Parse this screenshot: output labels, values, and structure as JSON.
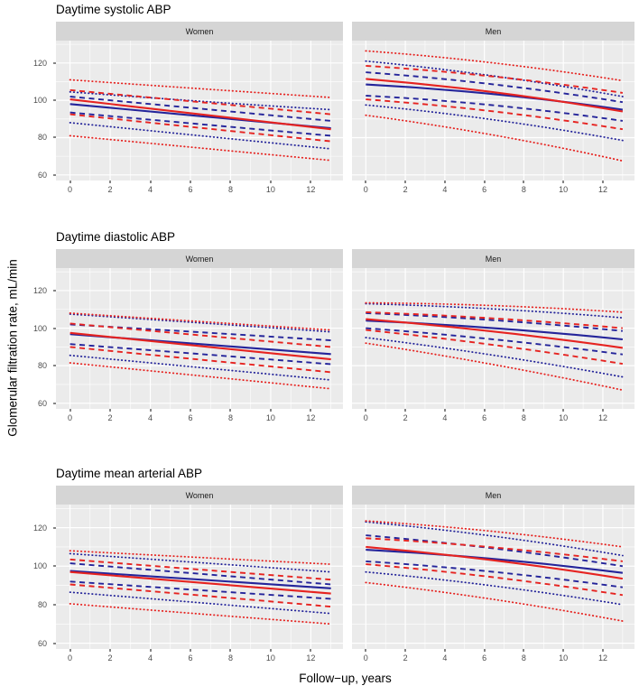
{
  "figure": {
    "x_axis_title": "Follow−up, years",
    "y_axis_title": "Glomerular filtration rate, mL/min"
  },
  "palette": {
    "red": "#e62320",
    "blue": "#24249a",
    "panel_bg": "#ebebeb",
    "strip_bg": "#d5d5d5",
    "grid": "#ffffff",
    "tick_mark": "#333333",
    "tick_text": "#4d4d4d"
  },
  "axes": {
    "x_ticks": [
      0,
      2,
      4,
      6,
      8,
      10,
      12
    ],
    "y_ticks": [
      60,
      80,
      100,
      120
    ],
    "x_minor_ticks": [
      1,
      3,
      5,
      7,
      9,
      11,
      13
    ],
    "y_minor_ticks": [
      70,
      90,
      110,
      130
    ],
    "x_domain": [
      -0.7,
      13.6
    ],
    "y_domain": [
      57,
      132
    ],
    "grid": "on",
    "legend": "none"
  },
  "chart_data": [
    {
      "type": "line",
      "title": "Daytime systolic ABP",
      "x": [
        0,
        6.5,
        13
      ],
      "panels": [
        {
          "facet": "Women",
          "series": [
            {
              "name": "blue-dotted-upper",
              "color": "blue",
              "style": "dotted",
              "y": [
                104.5,
                99.5,
                95
              ]
            },
            {
              "name": "red-dotted-upper",
              "color": "red",
              "style": "dotted",
              "y": [
                111,
                106.2,
                101.5
              ]
            },
            {
              "name": "blue-dotted-lower",
              "color": "blue",
              "style": "dotted",
              "y": [
                88,
                81,
                74
              ]
            },
            {
              "name": "red-dotted-lower",
              "color": "red",
              "style": "dotted",
              "y": [
                81,
                74.4,
                67.8
              ]
            },
            {
              "name": "blue-dashed-upper",
              "color": "blue",
              "style": "dashed",
              "y": [
                102,
                95.5,
                89
              ]
            },
            {
              "name": "red-dashed-upper",
              "color": "red",
              "style": "dashed",
              "y": [
                105.5,
                99,
                92.5
              ]
            },
            {
              "name": "blue-dashed-lower",
              "color": "blue",
              "style": "dashed",
              "y": [
                93.5,
                87.2,
                81
              ]
            },
            {
              "name": "red-dashed-lower",
              "color": "red",
              "style": "dashed",
              "y": [
                92.5,
                85.2,
                78
              ]
            },
            {
              "name": "blue-solid-mean",
              "color": "blue",
              "style": "solid",
              "y": [
                98,
                91.5,
                85
              ]
            },
            {
              "name": "red-solid-mean",
              "color": "red",
              "style": "solid",
              "y": [
                100.5,
                92.5,
                84.5
              ]
            }
          ]
        },
        {
          "facet": "Men",
          "series": [
            {
              "name": "blue-dotted-upper",
              "color": "blue",
              "style": "dotted",
              "y": [
                121,
                113,
                102
              ]
            },
            {
              "name": "red-dotted-upper",
              "color": "red",
              "style": "dotted",
              "y": [
                126.5,
                120,
                110.5
              ]
            },
            {
              "name": "blue-dotted-lower",
              "color": "blue",
              "style": "dotted",
              "y": [
                97.5,
                89.5,
                78.5
              ]
            },
            {
              "name": "red-dotted-lower",
              "color": "red",
              "style": "dotted",
              "y": [
                92,
                81.3,
                67.5
              ]
            },
            {
              "name": "blue-dashed-upper",
              "color": "blue",
              "style": "dashed",
              "y": [
                115,
                108.5,
                99
              ]
            },
            {
              "name": "red-dashed-upper",
              "color": "red",
              "style": "dashed",
              "y": [
                118.5,
                112.7,
                104
              ]
            },
            {
              "name": "blue-dashed-lower",
              "color": "blue",
              "style": "dashed",
              "y": [
                102.5,
                97.3,
                89
              ]
            },
            {
              "name": "red-dashed-lower",
              "color": "red",
              "style": "dashed",
              "y": [
                100.5,
                94,
                84.5
              ]
            },
            {
              "name": "blue-solid-mean",
              "color": "blue",
              "style": "solid",
              "y": [
                108.5,
                103.3,
                95
              ]
            },
            {
              "name": "red-solid-mean",
              "color": "red",
              "style": "solid",
              "y": [
                111.5,
                104.3,
                94
              ]
            }
          ]
        }
      ]
    },
    {
      "type": "line",
      "title": "Daytime diastolic ABP",
      "x": [
        0,
        6.5,
        13
      ],
      "panels": [
        {
          "facet": "Women",
          "series": [
            {
              "name": "blue-dotted-upper",
              "color": "blue",
              "style": "dotted",
              "y": [
                107.5,
                102.8,
                98
              ]
            },
            {
              "name": "red-dotted-upper",
              "color": "red",
              "style": "dotted",
              "y": [
                108,
                103.5,
                99
              ]
            },
            {
              "name": "blue-dotted-lower",
              "color": "blue",
              "style": "dotted",
              "y": [
                85.5,
                79,
                72.4
              ]
            },
            {
              "name": "red-dotted-lower",
              "color": "red",
              "style": "dotted",
              "y": [
                81.5,
                74.6,
                67.7
              ]
            },
            {
              "name": "blue-dashed-upper",
              "color": "blue",
              "style": "dashed",
              "y": [
                102,
                97.8,
                93.5
              ]
            },
            {
              "name": "red-dashed-upper",
              "color": "red",
              "style": "dashed",
              "y": [
                102.5,
                96.2,
                90
              ]
            },
            {
              "name": "blue-dashed-lower",
              "color": "blue",
              "style": "dashed",
              "y": [
                91.5,
                86.2,
                80.8
              ]
            },
            {
              "name": "red-dashed-lower",
              "color": "red",
              "style": "dashed",
              "y": [
                90,
                83.2,
                76.5
              ]
            },
            {
              "name": "blue-solid-mean",
              "color": "blue",
              "style": "solid",
              "y": [
                96.8,
                91.5,
                86.2
              ]
            },
            {
              "name": "red-solid-mean",
              "color": "red",
              "style": "solid",
              "y": [
                97.5,
                90.5,
                83.4
              ]
            }
          ]
        },
        {
          "facet": "Men",
          "series": [
            {
              "name": "blue-dotted-upper",
              "color": "blue",
              "style": "dotted",
              "y": [
                113,
                110.2,
                105.5
              ]
            },
            {
              "name": "red-dotted-upper",
              "color": "red",
              "style": "dotted",
              "y": [
                113.5,
                112,
                108.5
              ]
            },
            {
              "name": "blue-dotted-lower",
              "color": "blue",
              "style": "dotted",
              "y": [
                95,
                85.5,
                74
              ]
            },
            {
              "name": "red-dotted-lower",
              "color": "red",
              "style": "dotted",
              "y": [
                92,
                80.5,
                67
              ]
            },
            {
              "name": "blue-dashed-upper",
              "color": "blue",
              "style": "dashed",
              "y": [
                108,
                104.2,
                98.5
              ]
            },
            {
              "name": "red-dashed-upper",
              "color": "red",
              "style": "dashed",
              "y": [
                108.5,
                105.2,
                100
              ]
            },
            {
              "name": "blue-dashed-lower",
              "color": "blue",
              "style": "dashed",
              "y": [
                100,
                94,
                86
              ]
            },
            {
              "name": "red-dashed-lower",
              "color": "red",
              "style": "dashed",
              "y": [
                99,
                91,
                81
              ]
            },
            {
              "name": "blue-solid-mean",
              "color": "blue",
              "style": "solid",
              "y": [
                104,
                100,
                94
              ]
            },
            {
              "name": "red-solid-mean",
              "color": "red",
              "style": "solid",
              "y": [
                104.8,
                98.2,
                89.5
              ]
            }
          ]
        }
      ]
    },
    {
      "type": "line",
      "title": "Daytime mean arterial ABP",
      "x": [
        0,
        6.5,
        13
      ],
      "panels": [
        {
          "facet": "Women",
          "series": [
            {
              "name": "blue-dotted-upper",
              "color": "blue",
              "style": "dotted",
              "y": [
                106.5,
                101.8,
                97
              ]
            },
            {
              "name": "red-dotted-upper",
              "color": "red",
              "style": "dotted",
              "y": [
                108,
                104.5,
                101
              ]
            },
            {
              "name": "blue-dotted-lower",
              "color": "blue",
              "style": "dotted",
              "y": [
                86.5,
                81,
                75.4
              ]
            },
            {
              "name": "red-dotted-lower",
              "color": "red",
              "style": "dotted",
              "y": [
                80.5,
                75.2,
                70
              ]
            },
            {
              "name": "blue-dashed-upper",
              "color": "blue",
              "style": "dashed",
              "y": [
                101.5,
                96,
                90.5
              ]
            },
            {
              "name": "red-dashed-upper",
              "color": "red",
              "style": "dashed",
              "y": [
                103.5,
                98.2,
                93
              ]
            },
            {
              "name": "blue-dashed-lower",
              "color": "blue",
              "style": "dashed",
              "y": [
                92,
                87.5,
                83
              ]
            },
            {
              "name": "red-dashed-lower",
              "color": "red",
              "style": "dashed",
              "y": [
                90.5,
                84.8,
                79
              ]
            },
            {
              "name": "blue-solid-mean",
              "color": "blue",
              "style": "solid",
              "y": [
                97.5,
                93,
                88.5
              ]
            },
            {
              "name": "red-solid-mean",
              "color": "red",
              "style": "solid",
              "y": [
                97,
                91.4,
                85.8
              ]
            }
          ]
        },
        {
          "facet": "Men",
          "series": [
            {
              "name": "blue-dotted-upper",
              "color": "blue",
              "style": "dotted",
              "y": [
                123,
                115.5,
                105.5
              ]
            },
            {
              "name": "red-dotted-upper",
              "color": "red",
              "style": "dotted",
              "y": [
                123.5,
                118,
                110
              ]
            },
            {
              "name": "blue-dotted-lower",
              "color": "blue",
              "style": "dotted",
              "y": [
                97,
                89.7,
                80
              ]
            },
            {
              "name": "red-dotted-lower",
              "color": "red",
              "style": "dotted",
              "y": [
                91.5,
                82.7,
                71.5
              ]
            },
            {
              "name": "blue-dashed-upper",
              "color": "blue",
              "style": "dashed",
              "y": [
                116,
                109.2,
                100
              ]
            },
            {
              "name": "red-dashed-upper",
              "color": "red",
              "style": "dashed",
              "y": [
                114.5,
                109.7,
                102.5
              ]
            },
            {
              "name": "blue-dashed-lower",
              "color": "blue",
              "style": "dashed",
              "y": [
                102.5,
                97,
                89
              ]
            },
            {
              "name": "red-dashed-lower",
              "color": "red",
              "style": "dashed",
              "y": [
                101,
                94.2,
                85
              ]
            },
            {
              "name": "blue-solid-mean",
              "color": "blue",
              "style": "solid",
              "y": [
                108.5,
                103.7,
                96.5
              ]
            },
            {
              "name": "red-solid-mean",
              "color": "red",
              "style": "solid",
              "y": [
                110,
                103,
                93.5
              ]
            }
          ]
        }
      ]
    }
  ]
}
